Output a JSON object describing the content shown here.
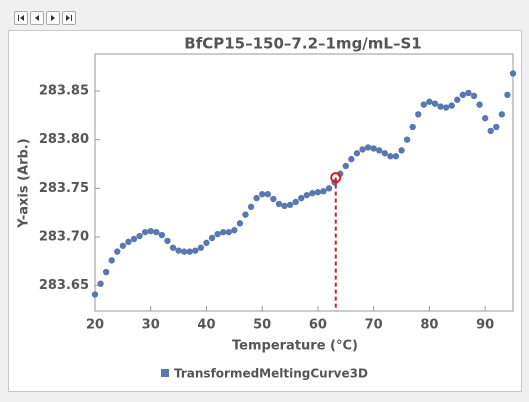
{
  "chart_data": {
    "type": "scatter",
    "title": "BfCP15–150–7.2–1mg/mL–S1",
    "xlabel": "Temperature  (°C)",
    "ylabel": "Y-axis  (Arb.)",
    "xlim": [
      20,
      95
    ],
    "ylim": [
      283.624,
      283.888
    ],
    "xticks": [
      20,
      30,
      40,
      50,
      60,
      70,
      80,
      90
    ],
    "yticks": [
      283.65,
      {
        "value": 283.7,
        "label": "283.70"
      },
      283.75,
      {
        "value": 283.8,
        "label": "283.80"
      },
      283.85
    ],
    "legend": "bottom",
    "series": [
      {
        "name": "TransformedMeltingCurve3D",
        "color": "#5a78b0",
        "x": [
          20,
          21,
          22,
          23,
          24,
          25,
          26,
          27,
          28,
          29,
          30,
          31,
          32,
          33,
          34,
          35,
          36,
          37,
          38,
          39,
          40,
          41,
          42,
          43,
          44,
          45,
          46,
          47,
          48,
          49,
          50,
          51,
          52,
          53,
          54,
          55,
          56,
          57,
          58,
          59,
          60,
          61,
          62,
          63,
          64,
          65,
          66,
          67,
          68,
          69,
          70,
          71,
          72,
          73,
          74,
          75,
          76,
          77,
          78,
          79,
          80,
          81,
          82,
          83,
          84,
          85,
          86,
          87,
          88,
          89,
          90,
          91,
          92,
          93,
          94,
          95
        ],
        "values": [
          283.641,
          283.652,
          283.664,
          283.676,
          283.685,
          283.691,
          283.695,
          283.698,
          283.701,
          283.705,
          283.706,
          283.705,
          283.702,
          283.696,
          283.689,
          283.686,
          283.685,
          283.685,
          283.686,
          283.689,
          283.694,
          283.699,
          283.703,
          283.705,
          283.705,
          283.707,
          283.714,
          283.723,
          283.731,
          283.74,
          283.744,
          283.744,
          283.739,
          283.734,
          283.732,
          283.733,
          283.736,
          283.74,
          283.743,
          283.745,
          283.746,
          283.747,
          283.75,
          283.756,
          283.765,
          283.773,
          283.78,
          283.786,
          283.79,
          283.792,
          283.791,
          283.789,
          283.786,
          283.783,
          283.783,
          283.789,
          283.8,
          283.813,
          283.826,
          283.836,
          283.839,
          283.837,
          283.834,
          283.833,
          283.835,
          283.841,
          283.846,
          283.848,
          283.845,
          283.836,
          283.822,
          283.809,
          283.813,
          283.826,
          283.846,
          283.868
        ]
      }
    ],
    "marker": {
      "x": 63.2,
      "y": 283.761,
      "color": "#cc2222"
    }
  }
}
